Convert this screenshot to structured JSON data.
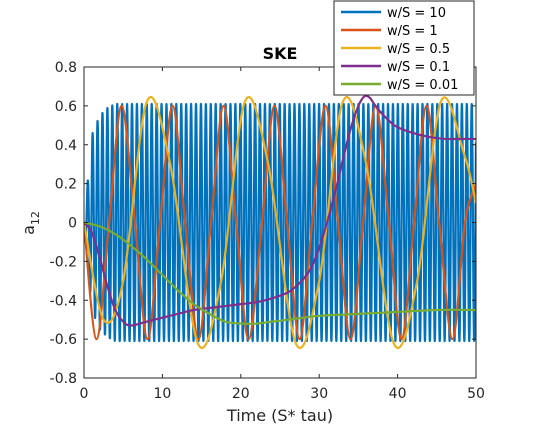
{
  "chart_data": {
    "type": "line",
    "title": "SKE",
    "xlabel": "Time (S* tau)",
    "ylabel_main": "a",
    "ylabel_sub": "12",
    "xlim": [
      0,
      50
    ],
    "ylim": [
      -0.8,
      0.8
    ],
    "xticks": [
      0,
      10,
      20,
      30,
      40,
      50
    ],
    "yticks": [
      -0.8,
      -0.6,
      -0.4,
      -0.2,
      0,
      0.2,
      0.4,
      0.6,
      0.8
    ],
    "ytick_labels": [
      "-0.8",
      "-0.6",
      "-0.4",
      "-0.2",
      "0",
      "0.2",
      "0.4",
      "0.6",
      "0.8"
    ],
    "grid": false,
    "legend_position": "top-right (outside plot)",
    "series": [
      {
        "name": "w/S = 10",
        "color": "#0072BD",
        "kind": "damped_sine",
        "amplitude": 0.61,
        "period": 0.628,
        "ramp": 3,
        "x": [
          0,
          1,
          2,
          3,
          4,
          5,
          10,
          20,
          30,
          40,
          50
        ],
        "envelope": [
          0,
          0.45,
          0.55,
          0.59,
          0.61,
          0.61,
          0.61,
          0.61,
          0.61,
          0.61,
          0.61
        ]
      },
      {
        "name": "w/S = 1",
        "color": "#D95319",
        "kind": "oscillation",
        "x": [
          0,
          1.6,
          3.2,
          4.8,
          6.5,
          8.1,
          9.7,
          11.3,
          12.9,
          14.6,
          16.2,
          17.8,
          19.4,
          21.0,
          22.7,
          24.3,
          25.9,
          27.5,
          29.1,
          30.8,
          32.4,
          34.0,
          35.6,
          37.2,
          38.9,
          40.5,
          42.1,
          43.7,
          45.3,
          47.0,
          48.6,
          50.0
        ],
        "y": [
          0,
          -0.6,
          0,
          0.6,
          0,
          -0.6,
          0,
          0.6,
          0,
          -0.6,
          0,
          0.6,
          0,
          -0.6,
          0,
          0.6,
          0,
          -0.6,
          0,
          0.6,
          0,
          -0.6,
          0,
          0.6,
          0,
          -0.6,
          0,
          0.6,
          0,
          -0.6,
          0,
          0.2
        ]
      },
      {
        "name": "w/S = 0.5",
        "color": "#EDB120",
        "kind": "oscillation",
        "x": [
          0,
          2.5,
          5.0,
          8.0,
          11.0,
          14.5,
          17.5,
          20.5,
          23.5,
          27.0,
          30.0,
          33.0,
          36.0,
          39.5,
          42.5,
          45.5,
          48.5,
          50.0
        ],
        "y": [
          0,
          -0.5,
          -0.3,
          0.62,
          0.3,
          -0.62,
          -0.3,
          0.62,
          0.3,
          -0.62,
          -0.3,
          0.62,
          0.3,
          -0.62,
          -0.3,
          0.62,
          0.35,
          0.1
        ]
      },
      {
        "name": "w/S = 0.1",
        "color": "#7E2F8E",
        "kind": "curve",
        "x": [
          0,
          1,
          2,
          3,
          4,
          5,
          6,
          8,
          10,
          12,
          14,
          16,
          18,
          20,
          22,
          24,
          26,
          27,
          28,
          29,
          30,
          31,
          32,
          33,
          34,
          35,
          35.8,
          36.5,
          37,
          38,
          39,
          40,
          42,
          44,
          46,
          48,
          50
        ],
        "y": [
          0,
          -0.05,
          -0.18,
          -0.33,
          -0.45,
          -0.51,
          -0.53,
          -0.51,
          -0.49,
          -0.47,
          -0.45,
          -0.44,
          -0.43,
          -0.42,
          -0.41,
          -0.39,
          -0.36,
          -0.33,
          -0.29,
          -0.23,
          -0.13,
          0.0,
          0.15,
          0.32,
          0.48,
          0.6,
          0.65,
          0.64,
          0.61,
          0.56,
          0.52,
          0.49,
          0.46,
          0.44,
          0.43,
          0.43,
          0.43
        ]
      },
      {
        "name": "w/S = 0.01",
        "color": "#77AC30",
        "kind": "curve",
        "x": [
          0,
          2,
          4,
          6,
          8,
          10,
          12,
          14,
          16,
          18,
          20,
          22,
          24,
          26,
          28,
          30,
          35,
          40,
          45,
          50
        ],
        "y": [
          0,
          -0.02,
          -0.06,
          -0.12,
          -0.19,
          -0.27,
          -0.35,
          -0.42,
          -0.47,
          -0.51,
          -0.52,
          -0.52,
          -0.51,
          -0.5,
          -0.49,
          -0.48,
          -0.47,
          -0.46,
          -0.45,
          -0.45
        ]
      }
    ]
  }
}
